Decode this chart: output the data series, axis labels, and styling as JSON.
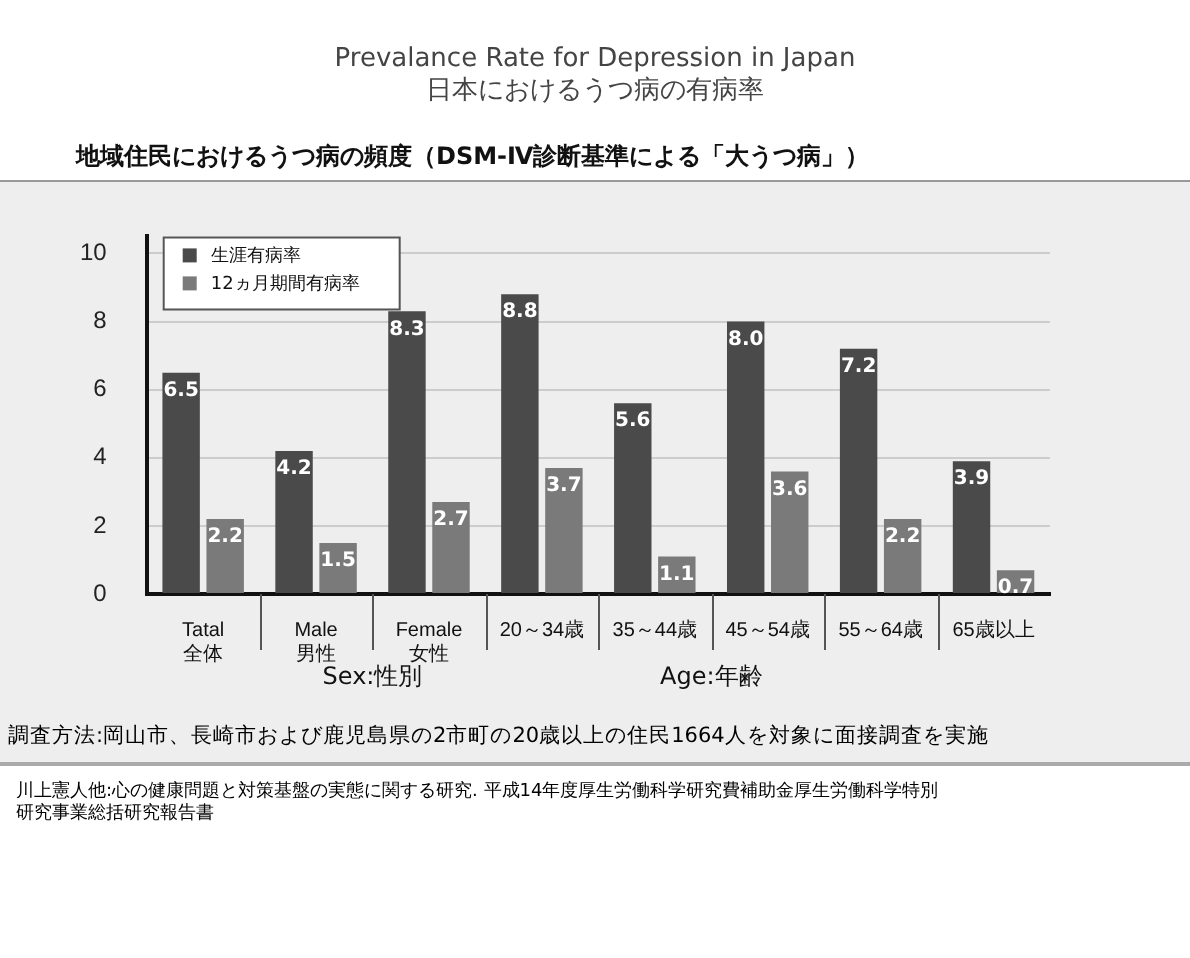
{
  "chart_data": {
    "type": "bar",
    "title": "Prevalance Rate for Depression in Japan\n日本におけるうつ病の有病率",
    "subtitle": "地域住民におけるうつ病の頻度（DSM-Ⅳ診断基準による「大うつ病」）",
    "categories": [
      "Tatal\n全体",
      "Male\n男性",
      "Female\n女性",
      "20～34歳",
      "35～44歳",
      "45～54歳",
      "55～64歳",
      "65歳以上"
    ],
    "series": [
      {
        "name": "生涯有病率",
        "color": "#4a4a4a",
        "values": [
          6.5,
          4.2,
          8.3,
          8.8,
          5.6,
          8.0,
          7.2,
          3.9
        ],
        "value_labels": [
          "6.5",
          "4.2",
          "8.3",
          "8.8",
          "5.6",
          "8.0",
          "7.2",
          "3.9"
        ]
      },
      {
        "name": "12ヵ月期間有病率",
        "color": "#7a7a7a",
        "values": [
          2.2,
          1.5,
          2.7,
          3.7,
          1.1,
          3.6,
          2.2,
          0.7
        ],
        "value_labels": [
          "2.2",
          "1.5",
          "2.7",
          "3.7",
          "1.1",
          "3.6",
          "2.2",
          "0.7"
        ]
      }
    ],
    "ylim": [
      0,
      10.5
    ],
    "yticks": [
      0,
      2,
      4,
      6,
      8,
      10
    ],
    "grid": "y",
    "legend": "top left",
    "annotations": [
      "Sex:性別",
      "Age:年齢",
      "調査方法:岡山市、長崎市および鹿児島県の2市町の20歳以上の住民1664人を対象に面接調査を実施",
      "川上憲人他:心の健康問題と対策基盤の実態に関する研究. 平成14年度厚生労働科学研究費補助金厚生労働科学特別研究事業総括研究報告書"
    ]
  }
}
